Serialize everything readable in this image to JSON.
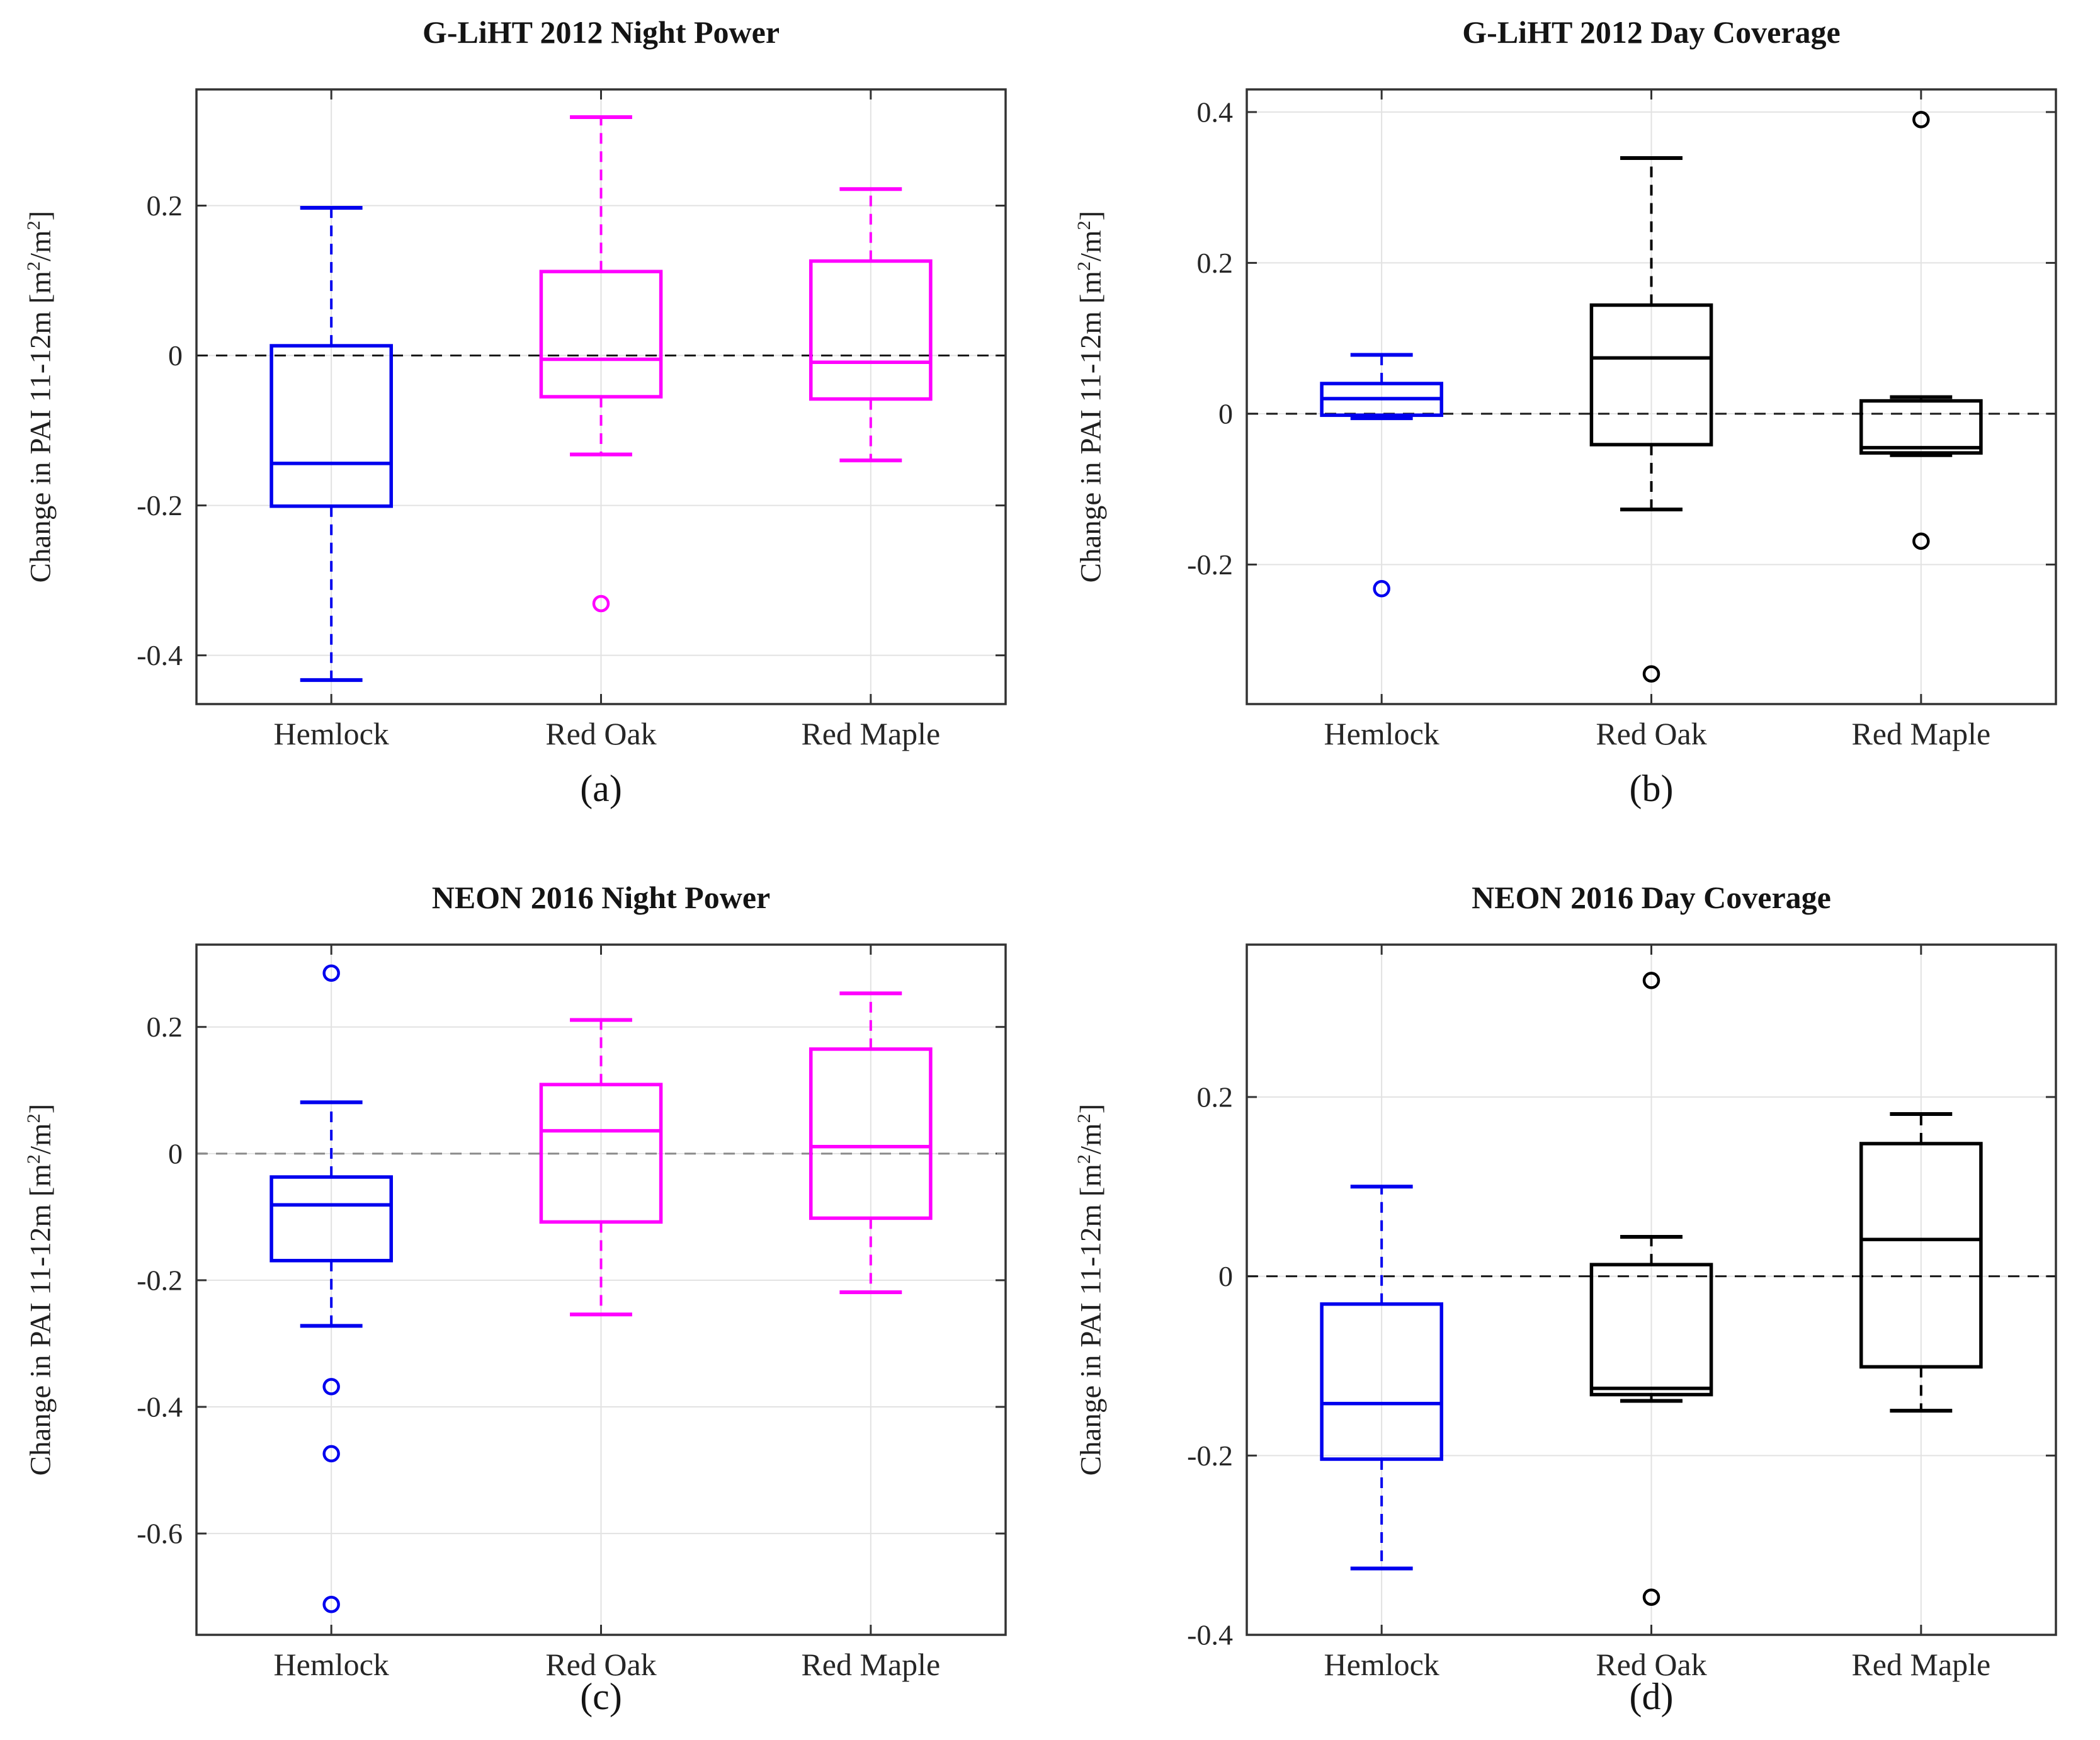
{
  "figure": {
    "ylabel": {
      "pre": "Change in PAI 11-12m [m",
      "sup1": "2",
      "mid": "/m",
      "sup2": "2",
      "post": "]"
    }
  },
  "chart_data": {
    "type": "bar",
    "note": "2x2 grid of box-and-whisker plots",
    "panels": [
      {
        "id": "a",
        "type": "boxplot",
        "title": "G-LiHT 2012 Night Power",
        "caption": "(a)",
        "ylabel": "Change in PAI 11-12m [m2/m2]",
        "yticks": [
          0.2,
          0,
          -0.2,
          -0.4
        ],
        "ylim": [
          -0.465,
          0.355
        ],
        "zero_line": 0,
        "zero_line_color": "#1a1a1a",
        "grid": true,
        "categories": [
          "Hemlock",
          "Red Oak",
          "Red Maple"
        ],
        "series": [
          {
            "category": "Hemlock",
            "color": "#0000EE",
            "whisker_low": -0.433,
            "q1": -0.201,
            "median": -0.144,
            "q3": 0.013,
            "whisker_high": 0.197,
            "outliers": []
          },
          {
            "category": "Red Oak",
            "color": "#FF00FF",
            "whisker_low": -0.132,
            "q1": -0.055,
            "median": -0.005,
            "q3": 0.112,
            "whisker_high": 0.318,
            "outliers": [
              -0.331
            ]
          },
          {
            "category": "Red Maple",
            "color": "#FF00FF",
            "whisker_low": -0.14,
            "q1": -0.058,
            "median": -0.009,
            "q3": 0.126,
            "whisker_high": 0.222,
            "outliers": []
          }
        ]
      },
      {
        "id": "b",
        "type": "boxplot",
        "title": "G-LiHT 2012 Day Coverage",
        "caption": "(b)",
        "ylabel": "Change in PAI 11-12m [m2/m2]",
        "yticks": [
          0.4,
          0.2,
          0,
          -0.2
        ],
        "ylim": [
          -0.385,
          0.43
        ],
        "zero_line": 0,
        "zero_line_color": "#1a1a1a",
        "grid": true,
        "categories": [
          "Hemlock",
          "Red Oak",
          "Red Maple"
        ],
        "series": [
          {
            "category": "Hemlock",
            "color": "#0000EE",
            "whisker_low": -0.006,
            "q1": -0.002,
            "median": 0.02,
            "q3": 0.04,
            "whisker_high": 0.078,
            "outliers": [
              -0.232
            ]
          },
          {
            "category": "Red Oak",
            "color": "#000000",
            "whisker_low": -0.127,
            "q1": -0.041,
            "median": 0.074,
            "q3": 0.144,
            "whisker_high": 0.339,
            "outliers": [
              -0.345
            ]
          },
          {
            "category": "Red Maple",
            "color": "#000000",
            "whisker_low": -0.055,
            "q1": -0.052,
            "median": -0.045,
            "q3": 0.017,
            "whisker_high": 0.022,
            "outliers": [
              0.39,
              -0.169
            ]
          }
        ]
      },
      {
        "id": "c",
        "type": "boxplot",
        "title": "NEON 2016 Night Power",
        "caption": "(c)",
        "ylabel": "Change in PAI 11-12m [m2/m2]",
        "yticks": [
          0.2,
          0,
          -0.2,
          -0.4,
          -0.6
        ],
        "ylim": [
          -0.76,
          0.33
        ],
        "zero_line": 0,
        "zero_line_color": "#8a8a8a",
        "grid": true,
        "categories": [
          "Hemlock",
          "Red Oak",
          "Red Maple"
        ],
        "series": [
          {
            "category": "Hemlock",
            "color": "#0000EE",
            "whisker_low": -0.272,
            "q1": -0.169,
            "median": -0.081,
            "q3": -0.037,
            "whisker_high": 0.081,
            "outliers": [
              0.285,
              -0.368,
              -0.474,
              -0.712
            ]
          },
          {
            "category": "Red Oak",
            "color": "#FF00FF",
            "whisker_low": -0.254,
            "q1": -0.108,
            "median": 0.036,
            "q3": 0.109,
            "whisker_high": 0.211,
            "outliers": []
          },
          {
            "category": "Red Maple",
            "color": "#FF00FF",
            "whisker_low": -0.219,
            "q1": -0.102,
            "median": 0.011,
            "q3": 0.165,
            "whisker_high": 0.253,
            "outliers": []
          }
        ]
      },
      {
        "id": "d",
        "type": "boxplot",
        "title": "NEON 2016 Day Coverage",
        "caption": "(d)",
        "ylabel": "Change in PAI 11-12m [m2/m2]",
        "yticks": [
          0.2,
          0,
          -0.2,
          -0.4
        ],
        "ylim": [
          -0.4,
          0.37
        ],
        "zero_line": 0,
        "zero_line_color": "#1a1a1a",
        "grid": true,
        "categories": [
          "Hemlock",
          "Red Oak",
          "Red Maple"
        ],
        "series": [
          {
            "category": "Hemlock",
            "color": "#0000EE",
            "whisker_low": -0.326,
            "q1": -0.204,
            "median": -0.142,
            "q3": -0.031,
            "whisker_high": 0.1,
            "outliers": []
          },
          {
            "category": "Red Oak",
            "color": "#000000",
            "whisker_low": -0.139,
            "q1": -0.132,
            "median": -0.125,
            "q3": 0.013,
            "whisker_high": 0.044,
            "outliers": [
              0.33,
              -0.358
            ]
          },
          {
            "category": "Red Maple",
            "color": "#000000",
            "whisker_low": -0.15,
            "q1": -0.101,
            "median": 0.041,
            "q3": 0.148,
            "whisker_high": 0.181,
            "outliers": []
          }
        ]
      }
    ]
  }
}
